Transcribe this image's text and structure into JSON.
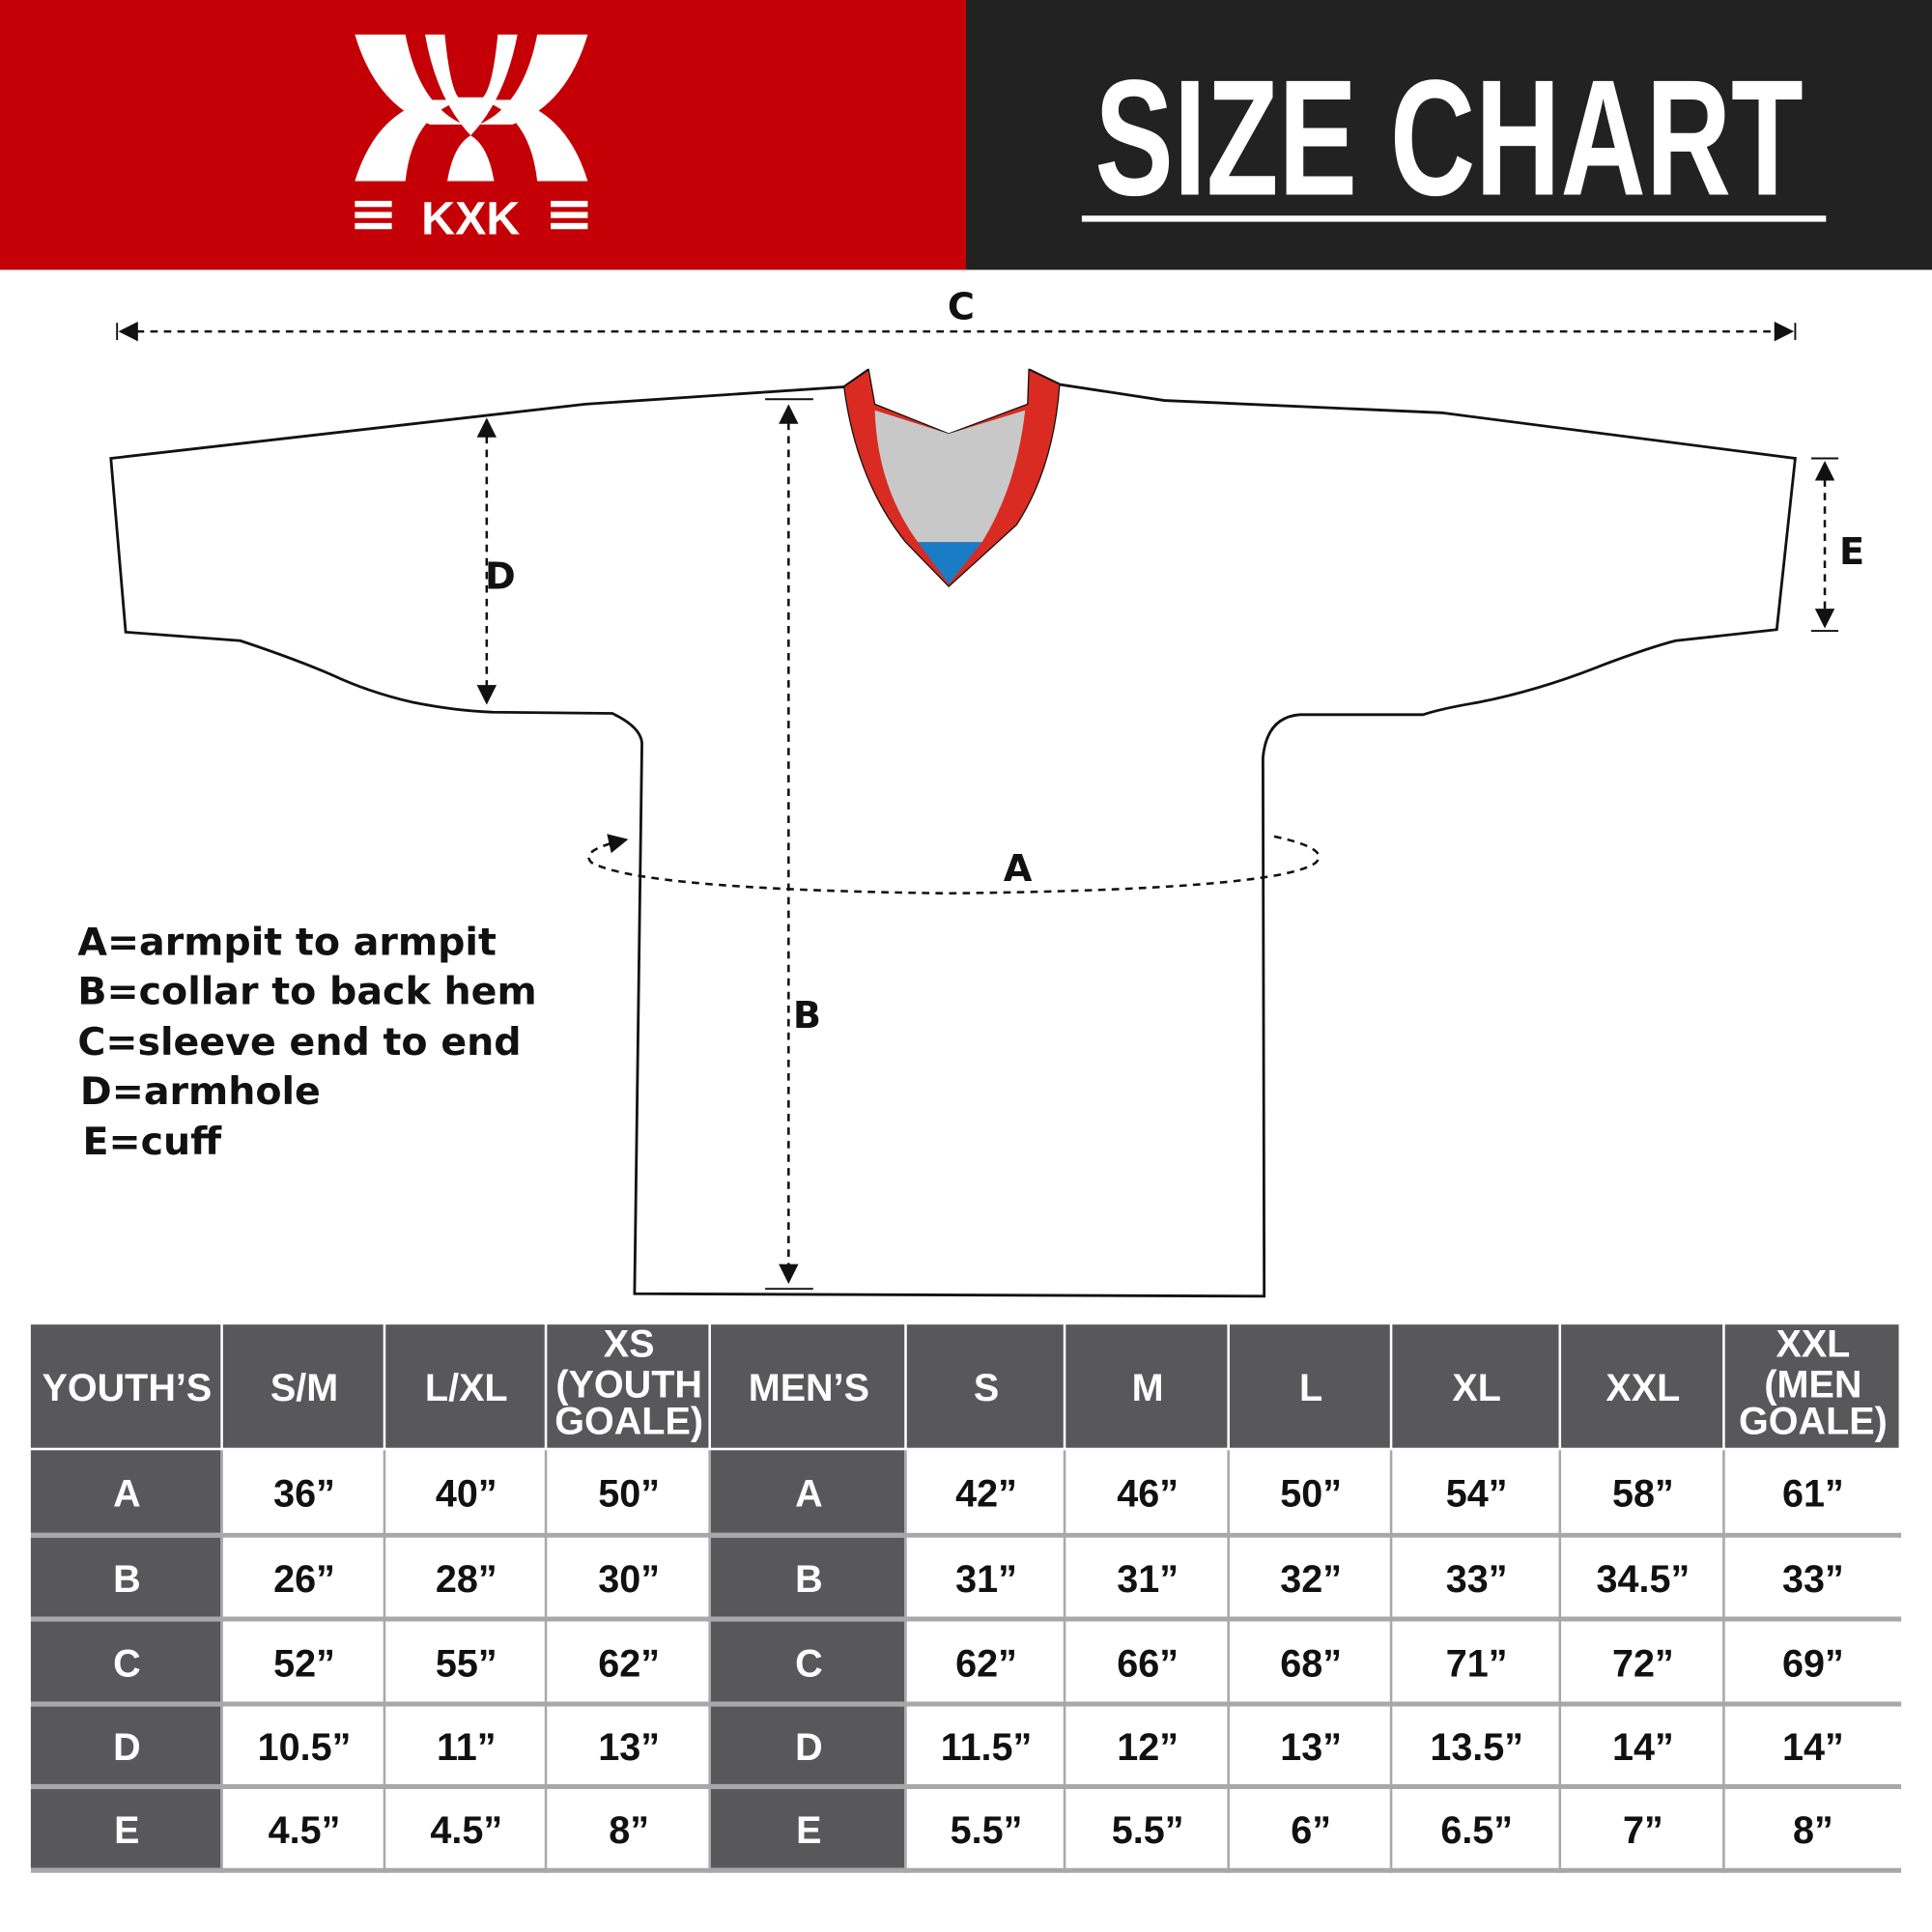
{
  "header": {
    "brand": "KXK",
    "title": "SIZE CHART",
    "colors": {
      "brand_red": "#c40006",
      "title_bg": "#222222",
      "table_header": "#58585a",
      "collar_red": "#d92b22",
      "collar_grey": "#c8c8c8",
      "collar_blue": "#1a7cc4"
    }
  },
  "diagram": {
    "dimension_labels": {
      "a": "A",
      "b": "B",
      "c": "C",
      "d": "D",
      "e": "E"
    },
    "legend": [
      "A=armpit to armpit",
      "B=collar to back hem",
      "C=sleeve end to end",
      "D=armhole",
      "E=cuff"
    ]
  },
  "table": {
    "youth_header": "YOUTH’S",
    "youth_sizes": [
      {
        "label": "S/M",
        "sub": ""
      },
      {
        "label": "L/XL",
        "sub": ""
      },
      {
        "label": "XS",
        "sub": [
          "(YOUTH",
          "GOALE)"
        ]
      }
    ],
    "men_header": "MEN’S",
    "men_sizes": [
      {
        "label": "S",
        "sub": ""
      },
      {
        "label": "M",
        "sub": ""
      },
      {
        "label": "L",
        "sub": ""
      },
      {
        "label": "XL",
        "sub": ""
      },
      {
        "label": "XXL",
        "sub": ""
      },
      {
        "label": "XXL",
        "sub": [
          "(MEN",
          "GOALE)"
        ]
      }
    ],
    "rows": [
      {
        "key": "A",
        "youth": [
          "36”",
          "40”",
          "50”"
        ],
        "men": [
          "42”",
          "46”",
          "50”",
          "54”",
          "58”",
          "61”"
        ]
      },
      {
        "key": "B",
        "youth": [
          "26”",
          "28”",
          "30”"
        ],
        "men": [
          "31”",
          "31”",
          "32”",
          "33”",
          "34.5”",
          "33”"
        ]
      },
      {
        "key": "C",
        "youth": [
          "52”",
          "55”",
          "62”"
        ],
        "men": [
          "62”",
          "66”",
          "68”",
          "71”",
          "72”",
          "69”"
        ]
      },
      {
        "key": "D",
        "youth": [
          "10.5”",
          "11”",
          "13”"
        ],
        "men": [
          "11.5”",
          "12”",
          "13”",
          "13.5”",
          "14”",
          "14”"
        ]
      },
      {
        "key": "E",
        "youth": [
          "4.5”",
          "4.5”",
          "8”"
        ],
        "men": [
          "5.5”",
          "5.5”",
          "6”",
          "6.5”",
          "7”",
          "8”"
        ]
      }
    ]
  }
}
